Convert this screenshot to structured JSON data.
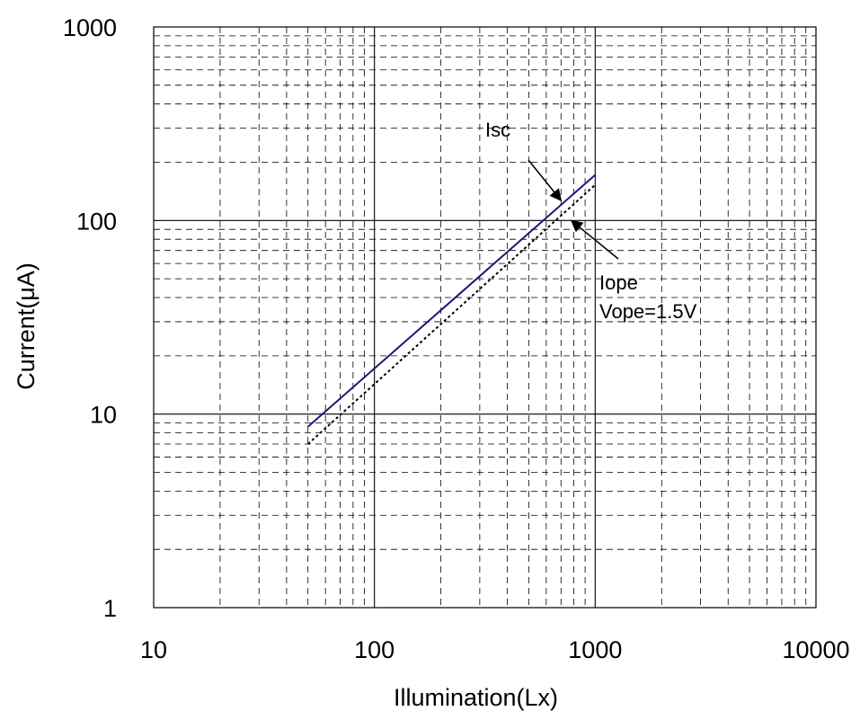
{
  "chart_data": {
    "type": "line",
    "xlabel": "Illumination(Lx)",
    "ylabel": "Current(μA)",
    "x_scale": "log",
    "y_scale": "log",
    "xlim": [
      10,
      10000
    ],
    "ylim": [
      1,
      1000
    ],
    "grid": true,
    "x_ticks": [
      "10",
      "100",
      "1000",
      "10000"
    ],
    "y_ticks": [
      "1",
      "10",
      "100",
      "1000"
    ],
    "series": [
      {
        "name": "Isc",
        "style": "solid",
        "color": "#1a1a7a",
        "x": [
          50,
          1000
        ],
        "y": [
          8.6,
          172
        ]
      },
      {
        "name": "Iope",
        "style": "dotted",
        "color": "#000000",
        "x": [
          50,
          1000
        ],
        "y": [
          7.0,
          153
        ]
      }
    ],
    "annotations": [
      {
        "text": "Isc",
        "lines": [
          "Isc"
        ],
        "target_x": 700,
        "target_y": 127
      },
      {
        "text": "Iope Vope=1.5V",
        "lines": [
          "Iope",
          "Vope=1.5V"
        ],
        "target_x": 780,
        "target_y": 100
      }
    ]
  }
}
